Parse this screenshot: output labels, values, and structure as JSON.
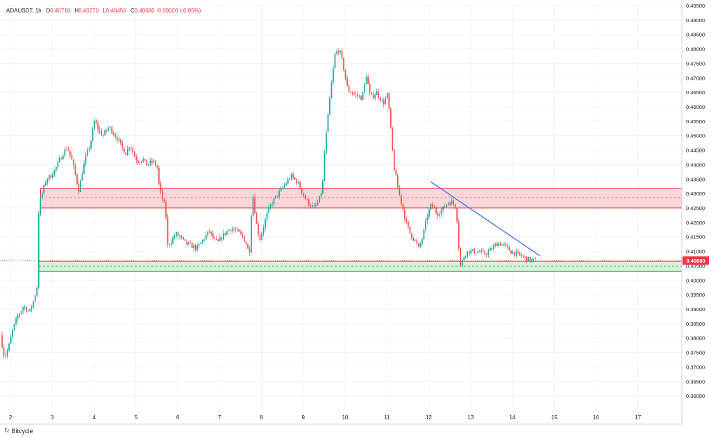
{
  "legend": {
    "symbol": "ADAUSDT",
    "interval": "1h",
    "open_label": "O",
    "open": "0.40710",
    "high_label": "H",
    "high": "0.40770",
    "low_label": "L",
    "low": "0.40450",
    "close_label": "C",
    "close": "0.40680",
    "change": "-0.00020 (-0.05%)"
  },
  "footer": {
    "brand": "Bitcycle",
    "icon": "bitcycle-logo-icon"
  },
  "colors": {
    "up": "#26a69a",
    "down": "#ef5350",
    "resistance_fill": "#f8c9cc",
    "resistance_border": "#e0303b",
    "support_fill": "#c9ecd0",
    "support_border": "#2e9e45",
    "trendline": "#2962ff",
    "price_tag": "#f23645",
    "grid": "#f0f3fa"
  },
  "chart_data": {
    "type": "candlestick",
    "symbol": "ADAUSDT",
    "interval": "1h",
    "ylim": [
      0.355,
      0.495
    ],
    "xlim": [
      1.75,
      18.05
    ],
    "y_ticks": [
      "0.49500",
      "0.49000",
      "0.48500",
      "0.48000",
      "0.47500",
      "0.47000",
      "0.46500",
      "0.46000",
      "0.45500",
      "0.45000",
      "0.44500",
      "0.44000",
      "0.43500",
      "0.43000",
      "0.42500",
      "0.42000",
      "0.41500",
      "0.41000",
      "0.40500",
      "0.40000",
      "0.39500",
      "0.39000",
      "0.38500",
      "0.38000",
      "0.37500",
      "0.37000",
      "0.36500",
      "0.36000"
    ],
    "x_ticks": [
      "2",
      "3",
      "4",
      "5",
      "6",
      "7",
      "8",
      "9",
      "10",
      "11",
      "12",
      "13",
      "14",
      "15",
      "16",
      "17"
    ],
    "last_price": "0.40680",
    "last_price_value": 0.4068,
    "grid": true,
    "zones": [
      {
        "name": "resistance",
        "x_start": 2.72,
        "y_low": 0.425,
        "y_high": 0.4318,
        "mid": 0.4285
      },
      {
        "name": "support",
        "x_start": 2.68,
        "y_low": 0.4031,
        "y_high": 0.4065,
        "mid": 0.4048
      }
    ],
    "trendline": {
      "x1": 12.05,
      "y1": 0.434,
      "x2": 14.65,
      "y2": 0.4085
    },
    "price_path": [
      [
        1.8,
        0.381
      ],
      [
        1.9,
        0.373
      ],
      [
        2.0,
        0.377
      ],
      [
        2.1,
        0.383
      ],
      [
        2.2,
        0.387
      ],
      [
        2.35,
        0.391
      ],
      [
        2.5,
        0.389
      ],
      [
        2.6,
        0.393
      ],
      [
        2.68,
        0.398
      ],
      [
        2.7,
        0.41
      ],
      [
        2.72,
        0.426
      ],
      [
        2.8,
        0.43
      ],
      [
        2.9,
        0.435
      ],
      [
        3.0,
        0.436
      ],
      [
        3.1,
        0.438
      ],
      [
        3.2,
        0.441
      ],
      [
        3.3,
        0.444
      ],
      [
        3.4,
        0.446
      ],
      [
        3.5,
        0.442
      ],
      [
        3.6,
        0.436
      ],
      [
        3.68,
        0.431
      ],
      [
        3.75,
        0.437
      ],
      [
        3.85,
        0.443
      ],
      [
        3.95,
        0.447
      ],
      [
        4.05,
        0.455
      ],
      [
        4.15,
        0.452
      ],
      [
        4.25,
        0.45
      ],
      [
        4.4,
        0.453
      ],
      [
        4.5,
        0.451
      ],
      [
        4.6,
        0.449
      ],
      [
        4.7,
        0.446
      ],
      [
        4.8,
        0.444
      ],
      [
        4.9,
        0.447
      ],
      [
        5.0,
        0.443
      ],
      [
        5.1,
        0.441
      ],
      [
        5.2,
        0.442
      ],
      [
        5.3,
        0.44
      ],
      [
        5.45,
        0.441
      ],
      [
        5.55,
        0.439
      ],
      [
        5.6,
        0.432
      ],
      [
        5.7,
        0.427
      ],
      [
        5.75,
        0.424
      ],
      [
        5.8,
        0.412
      ],
      [
        5.9,
        0.414
      ],
      [
        6.0,
        0.416
      ],
      [
        6.1,
        0.415
      ],
      [
        6.2,
        0.413
      ],
      [
        6.35,
        0.412
      ],
      [
        6.5,
        0.411
      ],
      [
        6.65,
        0.414
      ],
      [
        6.8,
        0.417
      ],
      [
        6.9,
        0.414
      ],
      [
        7.0,
        0.413
      ],
      [
        7.15,
        0.416
      ],
      [
        7.3,
        0.418
      ],
      [
        7.45,
        0.417
      ],
      [
        7.6,
        0.415
      ],
      [
        7.7,
        0.412
      ],
      [
        7.75,
        0.408
      ],
      [
        7.8,
        0.423
      ],
      [
        7.85,
        0.43
      ],
      [
        7.9,
        0.421
      ],
      [
        8.0,
        0.414
      ],
      [
        8.1,
        0.419
      ],
      [
        8.2,
        0.424
      ],
      [
        8.3,
        0.427
      ],
      [
        8.45,
        0.43
      ],
      [
        8.6,
        0.433
      ],
      [
        8.75,
        0.436
      ],
      [
        8.9,
        0.434
      ],
      [
        9.0,
        0.431
      ],
      [
        9.1,
        0.428
      ],
      [
        9.2,
        0.426
      ],
      [
        9.3,
        0.425
      ],
      [
        9.4,
        0.427
      ],
      [
        9.5,
        0.432
      ],
      [
        9.55,
        0.444
      ],
      [
        9.6,
        0.452
      ],
      [
        9.7,
        0.466
      ],
      [
        9.8,
        0.478
      ],
      [
        9.9,
        0.48
      ],
      [
        10.0,
        0.474
      ],
      [
        10.1,
        0.466
      ],
      [
        10.2,
        0.465
      ],
      [
        10.3,
        0.464
      ],
      [
        10.45,
        0.463
      ],
      [
        10.55,
        0.471
      ],
      [
        10.65,
        0.463
      ],
      [
        10.8,
        0.465
      ],
      [
        10.95,
        0.461
      ],
      [
        11.05,
        0.464
      ],
      [
        11.1,
        0.458
      ],
      [
        11.15,
        0.449
      ],
      [
        11.2,
        0.44
      ],
      [
        11.3,
        0.432
      ],
      [
        11.4,
        0.426
      ],
      [
        11.5,
        0.42
      ],
      [
        11.6,
        0.416
      ],
      [
        11.7,
        0.414
      ],
      [
        11.8,
        0.411
      ],
      [
        11.9,
        0.415
      ],
      [
        12.0,
        0.422
      ],
      [
        12.1,
        0.426
      ],
      [
        12.25,
        0.423
      ],
      [
        12.4,
        0.425
      ],
      [
        12.5,
        0.427
      ],
      [
        12.6,
        0.427
      ],
      [
        12.7,
        0.425
      ],
      [
        12.75,
        0.413
      ],
      [
        12.8,
        0.405
      ],
      [
        12.9,
        0.409
      ],
      [
        13.0,
        0.41
      ],
      [
        13.2,
        0.41
      ],
      [
        13.4,
        0.409
      ],
      [
        13.55,
        0.411
      ],
      [
        13.7,
        0.413
      ],
      [
        13.85,
        0.412
      ],
      [
        14.0,
        0.41
      ],
      [
        14.15,
        0.409
      ],
      [
        14.3,
        0.408
      ],
      [
        14.45,
        0.407
      ],
      [
        14.55,
        0.4068
      ]
    ]
  }
}
